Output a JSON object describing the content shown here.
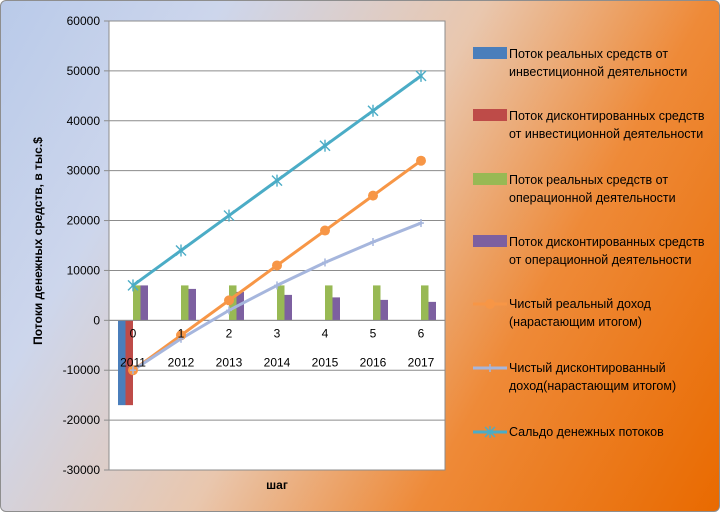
{
  "chart_data": {
    "type": "bar",
    "xlabel": "шаг",
    "ylabel": "Потоки денежных средств, в тыс.$",
    "ylim": [
      -30000,
      60000
    ],
    "yticks": [
      -30000,
      -20000,
      -10000,
      0,
      10000,
      20000,
      30000,
      40000,
      50000,
      60000
    ],
    "categories": [
      "0",
      "1",
      "2",
      "3",
      "4",
      "5",
      "6"
    ],
    "years": [
      "2011",
      "2012",
      "2013",
      "2014",
      "2015",
      "2016",
      "2017"
    ],
    "legend_position": "right",
    "series": [
      {
        "name": "Поток реальных средств от инвестиционной деятельности",
        "kind": "bar",
        "color": "#4a7ebb",
        "values": [
          -17000,
          0,
          0,
          0,
          0,
          0,
          0
        ]
      },
      {
        "name": "Поток дисконтированных средств от инвестиционной деятельности",
        "kind": "bar",
        "color": "#be4b48",
        "values": [
          -17000,
          0,
          0,
          0,
          0,
          0,
          0
        ]
      },
      {
        "name": "Поток реальных средств от операционной деятельности",
        "kind": "bar",
        "color": "#98b954",
        "values": [
          7000,
          7000,
          7000,
          7000,
          7000,
          7000,
          7000
        ]
      },
      {
        "name": "Поток дисконтированных средств от операционной деятельности",
        "kind": "bar",
        "color": "#7d60a0",
        "values": [
          7000,
          6300,
          5700,
          5100,
          4600,
          4100,
          3700
        ]
      },
      {
        "name": "Чистый реальный доход (нарастающим итогом)",
        "kind": "line",
        "marker": "circle",
        "color": "#f79646",
        "values": [
          -10000,
          -3000,
          4000,
          11000,
          18000,
          25000,
          32000
        ]
      },
      {
        "name": "Чистый дисконтированный доход(нарастающим итогом)",
        "kind": "line",
        "marker": "plus",
        "color": "#a6b6dd",
        "values": [
          -10000,
          -3700,
          2000,
          7000,
          11600,
          15700,
          19500
        ]
      },
      {
        "name": "Сальдо денежных потоков",
        "kind": "line",
        "marker": "star",
        "color": "#4bacc6",
        "values": [
          7000,
          14000,
          21000,
          28000,
          35000,
          42000,
          49000
        ]
      }
    ]
  }
}
